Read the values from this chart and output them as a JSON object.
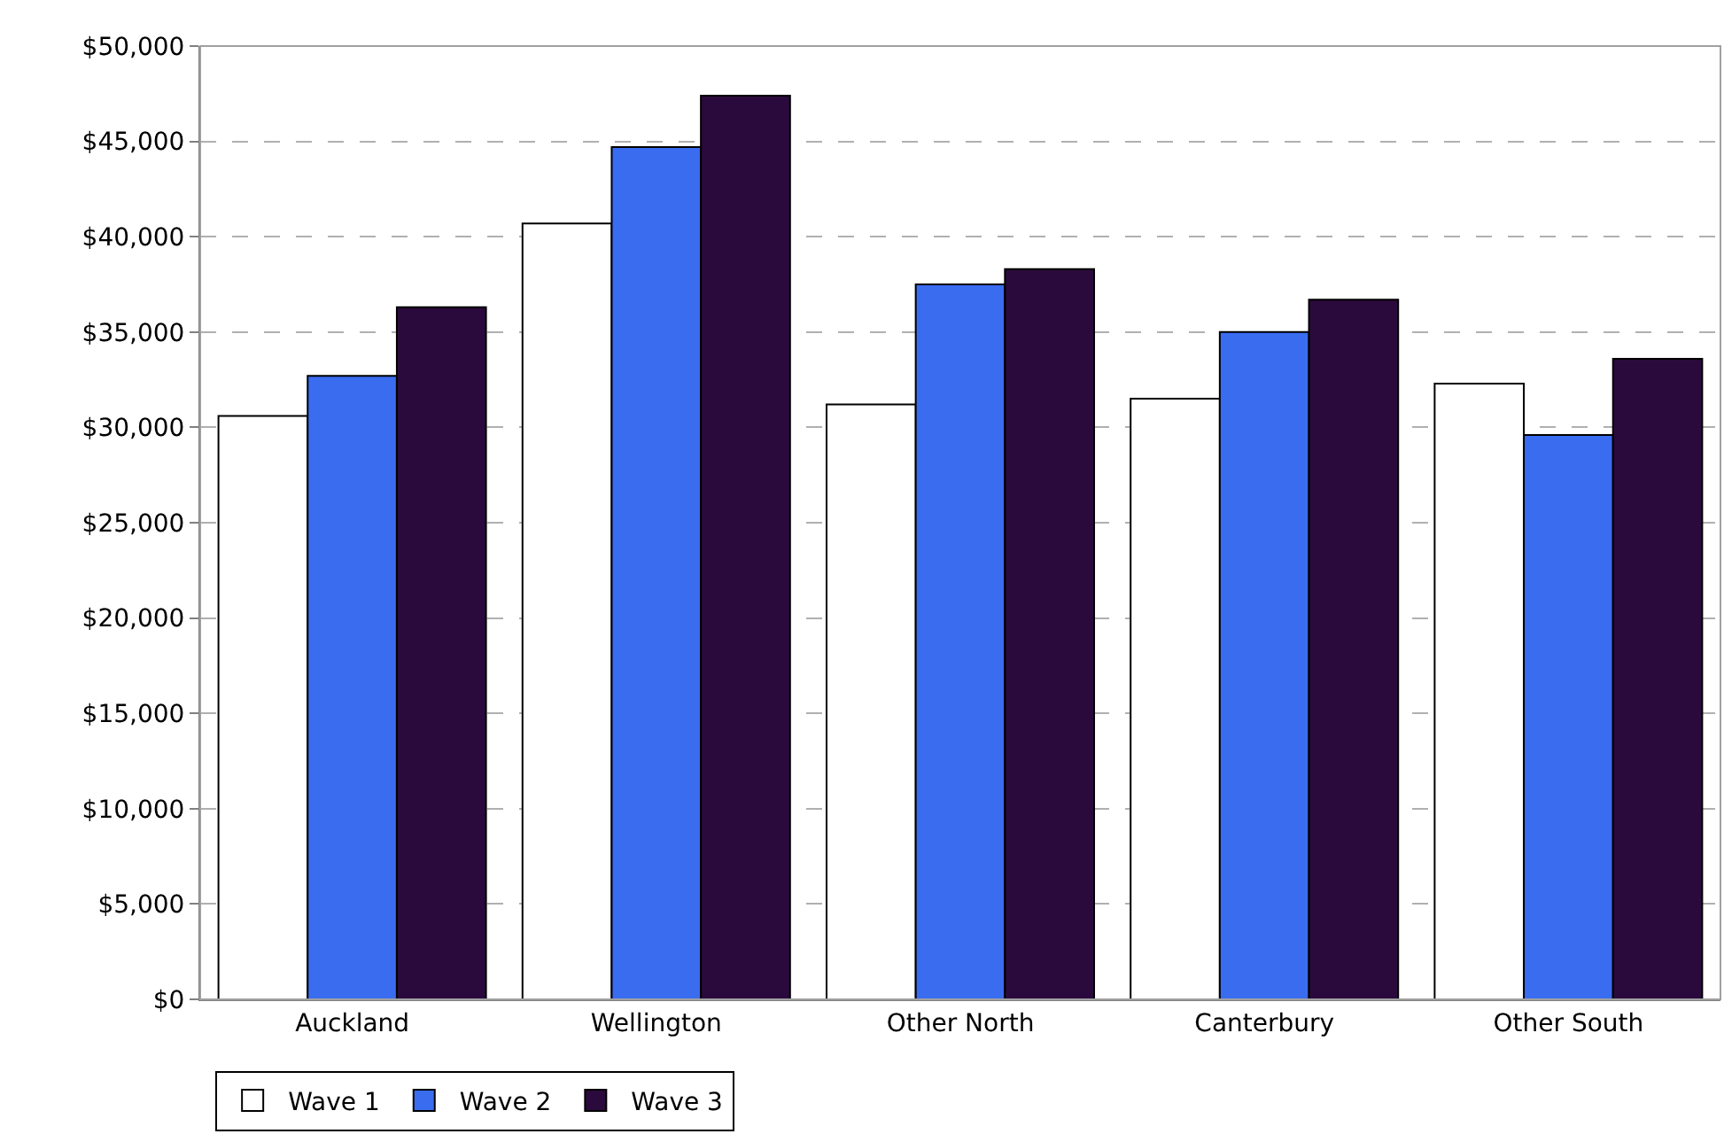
{
  "chart_data": {
    "type": "bar",
    "categories": [
      "Auckland",
      "Wellington",
      "Other North",
      "Canterbury",
      "Other South"
    ],
    "series": [
      {
        "name": "Wave 1",
        "color": "#ffffff",
        "values": [
          30600,
          40700,
          31200,
          31500,
          32300
        ]
      },
      {
        "name": "Wave 2",
        "color": "#3a6cf0",
        "values": [
          32700,
          44700,
          37500,
          35000,
          29600
        ]
      },
      {
        "name": "Wave 3",
        "color": "#2a0a3c",
        "values": [
          36300,
          47400,
          38300,
          36700,
          33600
        ]
      }
    ],
    "ylim": [
      0,
      50000
    ],
    "yticks": [
      {
        "value": 0,
        "label": "$0"
      },
      {
        "value": 5000,
        "label": "$5,000"
      },
      {
        "value": 10000,
        "label": "$10,000"
      },
      {
        "value": 15000,
        "label": "$15,000"
      },
      {
        "value": 20000,
        "label": "$20,000"
      },
      {
        "value": 25000,
        "label": "$25,000"
      },
      {
        "value": 30000,
        "label": "$30,000"
      },
      {
        "value": 35000,
        "label": "$35,000"
      },
      {
        "value": 40000,
        "label": "$40,000"
      },
      {
        "value": 45000,
        "label": "$45,000"
      },
      {
        "value": 50000,
        "label": "$50,000"
      }
    ],
    "grid": "y",
    "legend": "bottom left"
  }
}
